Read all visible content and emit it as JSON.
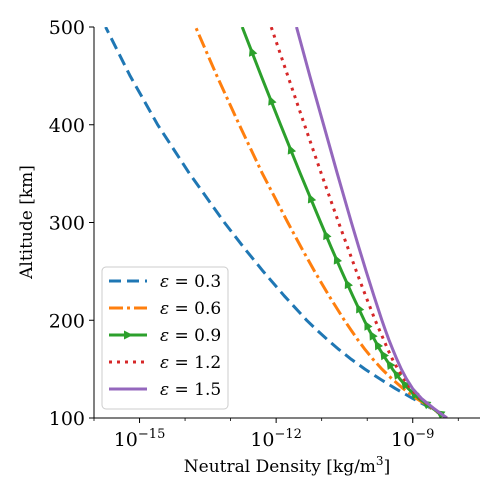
{
  "chart_data": {
    "type": "line",
    "title": "",
    "xlabel": "Neutral Density [kg/m³]",
    "ylabel": "Altitude [km]",
    "xscale": "log",
    "xlim": [
      1e-16,
      3e-08
    ],
    "ylim": [
      100,
      500
    ],
    "grid": false,
    "legend_position": "lower-left",
    "x_ticks": [
      {
        "value": 1e-15,
        "base": "10",
        "exp": "−15"
      },
      {
        "value": 1e-12,
        "base": "10",
        "exp": "−12"
      },
      {
        "value": 1e-09,
        "base": "10",
        "exp": "−9"
      }
    ],
    "y_ticks": [
      100,
      200,
      300,
      400,
      500
    ],
    "y": [
      100,
      110,
      120,
      130,
      140,
      150,
      160,
      170,
      180,
      190,
      200,
      225,
      250,
      275,
      300,
      350,
      400,
      450,
      500
    ],
    "series": [
      {
        "name": "ε = 0.3",
        "symbol": "ε",
        "eq": " = 0.3",
        "color": "#1f77b4",
        "dash": "12,6",
        "marker": "",
        "x": [
          5.6e-09,
          2.5e-09,
          1e-09,
          4.2e-10,
          1.9e-10,
          8.9e-11,
          4.5e-11,
          2.4e-11,
          1.35e-11,
          7.8e-12,
          4.7e-12,
          1.5e-12,
          5.2e-13,
          1.9e-13,
          7.3e-14,
          1.25e-14,
          2.5e-15,
          6.2e-16,
          1.8e-16
        ]
      },
      {
        "name": "ε = 0.6",
        "symbol": "ε",
        "eq": " = 0.6",
        "color": "#ff7f0e",
        "dash": "14,4,3,4",
        "marker": "",
        "x": [
          5.6e-09,
          2.6e-09,
          1.2e-09,
          6.2e-10,
          3.5e-10,
          2.1e-10,
          1.35e-10,
          9e-11,
          6.2e-11,
          4.4e-11,
          3.15e-11,
          1.45e-11,
          7e-12,
          3.5e-12,
          1.8e-12,
          5e-13,
          1.55e-13,
          5e-14,
          1.7e-14
        ]
      },
      {
        "name": "ε = 0.9",
        "symbol": "ε",
        "eq": " = 0.9",
        "color": "#2ca02c",
        "dash": "",
        "marker": "triangle",
        "x": [
          5.6e-09,
          2.7e-09,
          1.35e-09,
          8e-10,
          5.2e-10,
          3.6e-10,
          2.6e-10,
          1.9e-10,
          1.45e-10,
          1.1e-10,
          8.6e-11,
          4.8e-11,
          2.75e-11,
          1.6e-11,
          9.5e-12,
          3.4e-12,
          1.25e-12,
          4.7e-13,
          1.8e-13
        ]
      },
      {
        "name": "ε = 1.2",
        "symbol": "ε",
        "eq": " = 1.2",
        "color": "#d62728",
        "dash": "3,5",
        "marker": "",
        "x": [
          5.6e-09,
          2.8e-09,
          1.45e-09,
          9e-10,
          6.4e-10,
          4.7e-10,
          3.6e-10,
          2.85e-10,
          2.3e-10,
          1.85e-10,
          1.5e-10,
          9.2e-11,
          5.8e-11,
          3.7e-11,
          2.35e-11,
          9.8e-12,
          4.2e-12,
          1.8e-12,
          7.8e-13
        ]
      },
      {
        "name": "ε = 1.5",
        "symbol": "ε",
        "eq": " = 1.5",
        "color": "#9467bd",
        "dash": "",
        "marker": "",
        "x": [
          5.6e-09,
          2.85e-09,
          1.55e-09,
          1e-09,
          7.3e-10,
          5.6e-10,
          4.5e-10,
          3.65e-10,
          3e-10,
          2.5e-10,
          2.1e-10,
          1.4e-10,
          9.5e-11,
          6.5e-11,
          4.5e-11,
          2.2e-11,
          1.1e-11,
          5.5e-12,
          2.8e-12
        ]
      }
    ]
  }
}
